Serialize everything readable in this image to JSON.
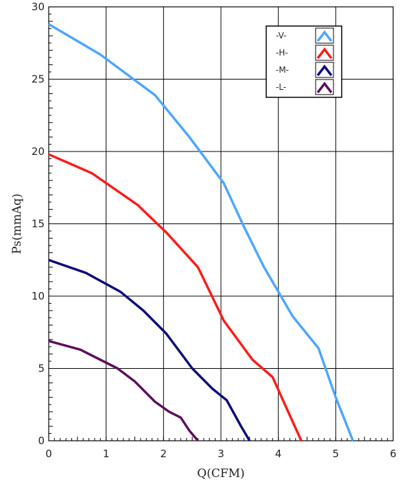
{
  "chart_data": {
    "type": "line",
    "xlabel": "Q(CFM)",
    "ylabel": "Ps(mmAq)",
    "xlim": [
      0,
      6
    ],
    "ylim": [
      0,
      30
    ],
    "xticks": [
      "0",
      "1",
      "2",
      "3",
      "4",
      "5",
      "6"
    ],
    "yticks": [
      "0",
      "5",
      "10",
      "15",
      "20",
      "25",
      "30"
    ],
    "grid": true,
    "legend_position": "top-right",
    "series": [
      {
        "name": "-V-",
        "color": "#4da6ff",
        "x": [
          0,
          0.9,
          1.85,
          2.45,
          3.05,
          3.4,
          3.75,
          4.25,
          4.7,
          5.0,
          5.3
        ],
        "y": [
          28.8,
          26.7,
          23.9,
          21.0,
          17.8,
          14.8,
          12.0,
          8.6,
          6.4,
          3.0,
          0
        ]
      },
      {
        "name": "-H-",
        "color": "#ff1a1a",
        "x": [
          0,
          0.75,
          1.55,
          2.05,
          2.6,
          3.05,
          3.55,
          3.9,
          4.15,
          4.4
        ],
        "y": [
          19.8,
          18.5,
          16.3,
          14.4,
          12.0,
          8.3,
          5.6,
          4.4,
          2.2,
          0
        ]
      },
      {
        "name": "-M-",
        "color": "#0d0d7a",
        "x": [
          0,
          0.65,
          1.25,
          1.65,
          2.05,
          2.5,
          2.85,
          3.1,
          3.35,
          3.5
        ],
        "y": [
          12.5,
          11.6,
          10.3,
          9.0,
          7.4,
          5.0,
          3.6,
          2.8,
          1.0,
          0
        ]
      },
      {
        "name": "-L-",
        "color": "#5c0f5c",
        "x": [
          0,
          0.55,
          1.2,
          1.5,
          1.85,
          2.1,
          2.3,
          2.45,
          2.6
        ],
        "y": [
          6.9,
          6.3,
          5.0,
          4.1,
          2.7,
          2.0,
          1.6,
          0.7,
          0
        ]
      }
    ]
  }
}
